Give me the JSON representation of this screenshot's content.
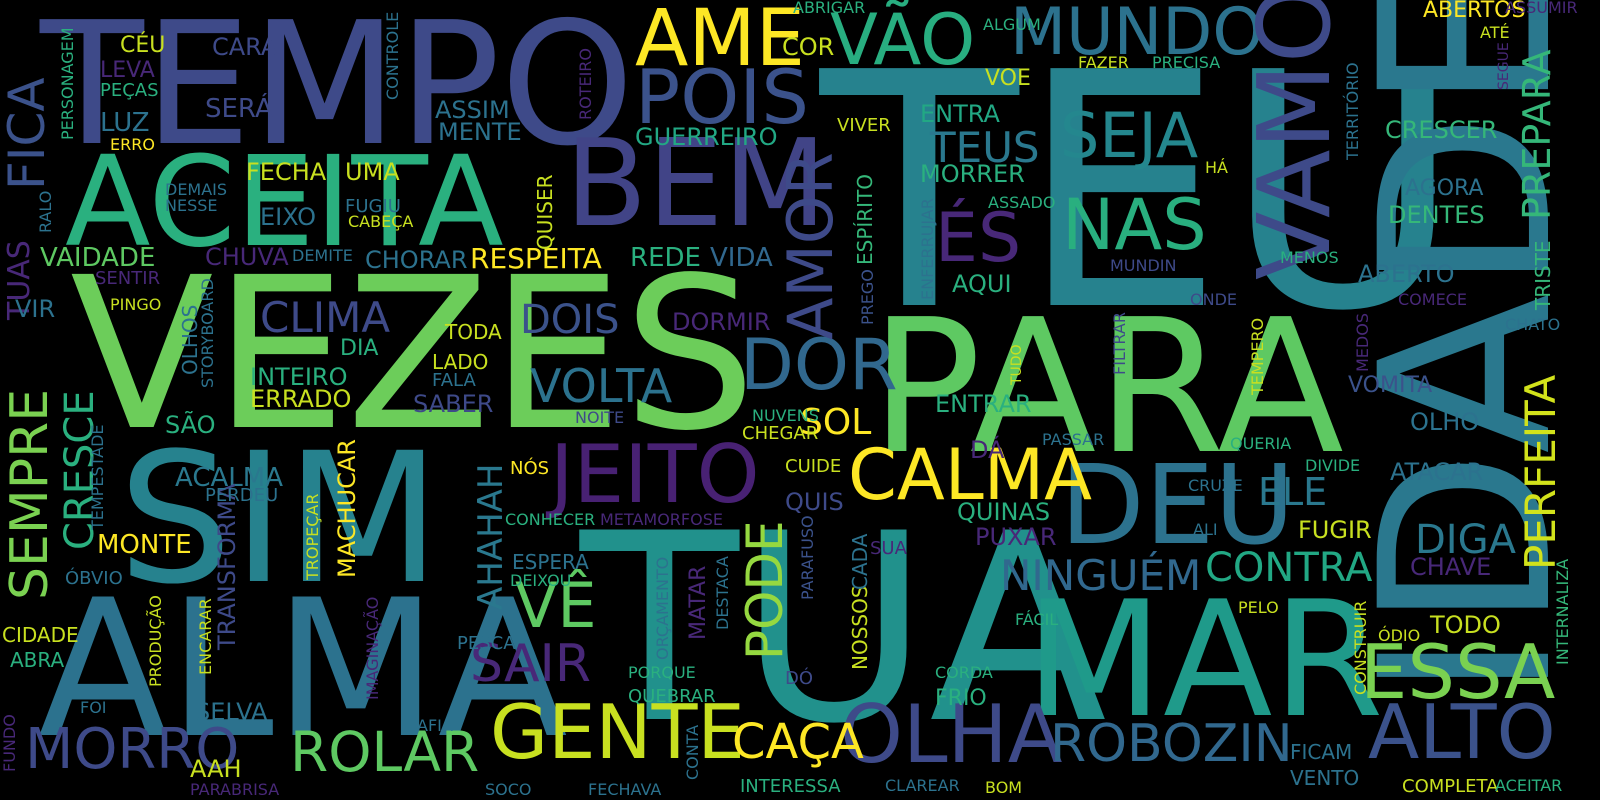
{
  "words": [
    {
      "text": "TEU",
      "color": "#26828e"
    },
    {
      "text": "IDADE",
      "color": "#2a788e"
    },
    {
      "text": "TEMPO",
      "color": "#3e4a89"
    },
    {
      "text": "VEZES",
      "color": "#6ccd5a"
    },
    {
      "text": "PARA",
      "color": "#5ec962"
    },
    {
      "text": "SIM",
      "color": "#26828e"
    },
    {
      "text": "TUA",
      "color": "#21918c"
    },
    {
      "text": "ALMA",
      "color": "#2c728e"
    },
    {
      "text": "MAR",
      "color": "#1f9a8a"
    },
    {
      "text": "ACEITA",
      "color": "#2ab07f"
    },
    {
      "text": "BEM",
      "color": "#414487"
    },
    {
      "text": "AME",
      "color": "#fde725"
    },
    {
      "text": "POIS",
      "color": "#3b528b"
    },
    {
      "text": "VÃO",
      "color": "#28ae80"
    },
    {
      "text": "MUNDO",
      "color": "#2c728e"
    },
    {
      "text": "VAMOS",
      "color": "#3e4a89"
    },
    {
      "text": "SEJA",
      "color": "#24878e"
    },
    {
      "text": "NAS",
      "color": "#29af7f"
    },
    {
      "text": "ÉS",
      "color": "#482878"
    },
    {
      "text": "DEU",
      "color": "#2c728e"
    },
    {
      "text": "CALMA",
      "color": "#fde725"
    },
    {
      "text": "JEITO",
      "color": "#482173"
    },
    {
      "text": "DOR",
      "color": "#31688e"
    },
    {
      "text": "AMOR",
      "color": "#3e4a89"
    },
    {
      "text": "OLHA",
      "color": "#3e4a89"
    },
    {
      "text": "GENTE",
      "color": "#c8e020"
    },
    {
      "text": "ROBOZIN",
      "color": "#31688e"
    },
    {
      "text": "ESSA",
      "color": "#7ad151"
    },
    {
      "text": "ALTO",
      "color": "#3b528b"
    },
    {
      "text": "ROLAR",
      "color": "#5ec962"
    },
    {
      "text": "MORRO",
      "color": "#3e4a89"
    },
    {
      "text": "SAIR",
      "color": "#482878"
    },
    {
      "text": "VÊ",
      "color": "#5ec962"
    },
    {
      "text": "PODE",
      "color": "#95d840"
    },
    {
      "text": "CAÇA",
      "color": "#fde725"
    },
    {
      "text": "VOLTA",
      "color": "#2c728e"
    },
    {
      "text": "DOIS",
      "color": "#3b528b"
    },
    {
      "text": "CLIMA",
      "color": "#3e4a89"
    },
    {
      "text": "NINGUÉM",
      "color": "#31688e"
    },
    {
      "text": "CONTRA",
      "color": "#22a884"
    },
    {
      "text": "DIGA",
      "color": "#2a788e"
    },
    {
      "text": "PERFEITA",
      "color": "#d2e21b"
    },
    {
      "text": "PREPARA",
      "color": "#35b779"
    },
    {
      "text": "TEUS",
      "color": "#2a788e"
    },
    {
      "text": "ELE",
      "color": "#2a788e"
    },
    {
      "text": "SEMPRE",
      "color": "#7ad151"
    },
    {
      "text": "FICA",
      "color": "#3b528b"
    },
    {
      "text": "TUAS",
      "color": "#482878"
    },
    {
      "text": "CRESCE",
      "color": "#2ab07f"
    },
    {
      "text": "AHAHAH",
      "color": "#2a788e"
    },
    {
      "text": "RESPEITA",
      "color": "#fde725"
    },
    {
      "text": "VAIDADE",
      "color": "#5ec962"
    },
    {
      "text": "ACALMA",
      "color": "#2a788e"
    },
    {
      "text": "MACHUCAR",
      "color": "#fde725"
    },
    {
      "text": "TRANSFORMA",
      "color": "#3e4a89"
    },
    {
      "text": "SOL",
      "color": "#fde725"
    },
    {
      "text": "CRESCER",
      "color": "#35b779"
    },
    {
      "text": "AGORA",
      "color": "#2c728e"
    },
    {
      "text": "DENTES",
      "color": "#35b779"
    },
    {
      "text": "ABERTO",
      "color": "#2c728e"
    },
    {
      "text": "TRISTE",
      "color": "#35b779"
    },
    {
      "text": "VOMITA",
      "color": "#3b528b"
    },
    {
      "text": "OLHO",
      "color": "#2c728e"
    },
    {
      "text": "ATACAR",
      "color": "#2c728e"
    },
    {
      "text": "CHAVE",
      "color": "#482878"
    },
    {
      "text": "TODO",
      "color": "#c8e020"
    },
    {
      "text": "FUGIR",
      "color": "#c8e020"
    },
    {
      "text": "VIDA",
      "color": "#31688e"
    },
    {
      "text": "REDE",
      "color": "#2ab07f"
    },
    {
      "text": "MORRER",
      "color": "#2ab07f"
    },
    {
      "text": "ENTRA",
      "color": "#22a884"
    },
    {
      "text": "VOE",
      "color": "#c8e020"
    },
    {
      "text": "GUERREIRO",
      "color": "#22a884"
    },
    {
      "text": "ASSIM",
      "color": "#2c728e"
    },
    {
      "text": "MENTE",
      "color": "#2c728e"
    },
    {
      "text": "CHORAR",
      "color": "#2c728e"
    },
    {
      "text": "CHUVA",
      "color": "#482878"
    },
    {
      "text": "ERRADO",
      "color": "#c8e020"
    },
    {
      "text": "INTEIRO",
      "color": "#2ab07f"
    },
    {
      "text": "SABER",
      "color": "#3e4a89"
    },
    {
      "text": "DORMIR",
      "color": "#482878"
    },
    {
      "text": "AQUI",
      "color": "#2ab07f"
    },
    {
      "text": "ENTRAR",
      "color": "#2ab07f"
    },
    {
      "text": "QUINAS",
      "color": "#2ab07f"
    },
    {
      "text": "PUXAR",
      "color": "#482878"
    },
    {
      "text": "ESPÍRITO",
      "color": "#35b779"
    },
    {
      "text": "ENFERRUJAR",
      "color": "#2c728e"
    },
    {
      "text": "PREGO",
      "color": "#3b528b"
    },
    {
      "text": "NOSSOS",
      "color": "#c8e020"
    },
    {
      "text": "CADA",
      "color": "#2c728e"
    },
    {
      "text": "PARAFUSO",
      "color": "#3b528b"
    },
    {
      "text": "QUISER",
      "color": "#c8e020"
    },
    {
      "text": "COR",
      "color": "#c8e020"
    },
    {
      "text": "CARA",
      "color": "#3e4a89"
    },
    {
      "text": "CÉU",
      "color": "#c8e020"
    },
    {
      "text": "LEVA",
      "color": "#482878"
    },
    {
      "text": "PEÇAS",
      "color": "#2ab07f"
    },
    {
      "text": "SERÁ",
      "color": "#3e4a89"
    },
    {
      "text": "LUZ",
      "color": "#2c728e"
    },
    {
      "text": "ERRO",
      "color": "#fde725"
    },
    {
      "text": "PERSONAGEM",
      "color": "#2ab07f"
    },
    {
      "text": "CONTROLE",
      "color": "#2c728e"
    },
    {
      "text": "ROTEIRO",
      "color": "#482878"
    },
    {
      "text": "FECHA",
      "color": "#c8e020"
    },
    {
      "text": "UMA",
      "color": "#c8e020"
    },
    {
      "text": "EIXO",
      "color": "#2c728e"
    },
    {
      "text": "FUGIU",
      "color": "#2c728e"
    },
    {
      "text": "CABEÇA",
      "color": "#c8e020"
    },
    {
      "text": "DEMAIS",
      "color": "#2c728e"
    },
    {
      "text": "NESSE",
      "color": "#2c728e"
    },
    {
      "text": "RALO",
      "color": "#2c728e"
    },
    {
      "text": "DEMITE",
      "color": "#2c728e"
    },
    {
      "text": "SENTIR",
      "color": "#482878"
    },
    {
      "text": "VIR",
      "color": "#2c728e"
    },
    {
      "text": "PINGO",
      "color": "#c8e020"
    },
    {
      "text": "OLHOS",
      "color": "#2c728e"
    },
    {
      "text": "STORYBOARD",
      "color": "#2c728e"
    },
    {
      "text": "DIA",
      "color": "#2ab07f"
    },
    {
      "text": "TODA",
      "color": "#c8e020"
    },
    {
      "text": "LADO",
      "color": "#c8e020"
    },
    {
      "text": "FALA",
      "color": "#2c728e"
    },
    {
      "text": "SÃO",
      "color": "#2ab07f"
    },
    {
      "text": "TEMPESTADE",
      "color": "#2c728e"
    },
    {
      "text": "PERDEU",
      "color": "#2c728e"
    },
    {
      "text": "MONTE",
      "color": "#fde725"
    },
    {
      "text": "ÓBVIO",
      "color": "#2c728e"
    },
    {
      "text": "TROPEÇAR",
      "color": "#c8e020"
    },
    {
      "text": "CIDADE",
      "color": "#c8e020"
    },
    {
      "text": "ABRA",
      "color": "#2ab07f"
    },
    {
      "text": "PRODUÇÃO",
      "color": "#c8e020"
    },
    {
      "text": "FOI",
      "color": "#2c728e"
    },
    {
      "text": "FUNDO",
      "color": "#482878"
    },
    {
      "text": "AAH",
      "color": "#c8e020"
    },
    {
      "text": "PARABRISA",
      "color": "#482878"
    },
    {
      "text": "SELVA",
      "color": "#2c728e"
    },
    {
      "text": "ENCARAR",
      "color": "#c8e020"
    },
    {
      "text": "IMAGINAÇÃO",
      "color": "#482878"
    },
    {
      "text": "AFIA",
      "color": "#2c728e"
    },
    {
      "text": "SOCO",
      "color": "#2c728e"
    },
    {
      "text": "PESCA",
      "color": "#2c728e"
    },
    {
      "text": "ESPERA",
      "color": "#2c728e"
    },
    {
      "text": "DEIXOU",
      "color": "#2ab07f"
    },
    {
      "text": "NÓS",
      "color": "#fde725"
    },
    {
      "text": "CONHECER",
      "color": "#2ab07f"
    },
    {
      "text": "METAMORFOSE",
      "color": "#482878"
    },
    {
      "text": "ORÇAMENTO",
      "color": "#2c728e"
    },
    {
      "text": "MATAR",
      "color": "#482878"
    },
    {
      "text": "DESTACA",
      "color": "#2c728e"
    },
    {
      "text": "PORQUE",
      "color": "#2ab07f"
    },
    {
      "text": "QUEBRAR",
      "color": "#2ab07f"
    },
    {
      "text": "FECHAVA",
      "color": "#2c728e"
    },
    {
      "text": "CONTA",
      "color": "#2c728e"
    },
    {
      "text": "DÓ",
      "color": "#3e4a89"
    },
    {
      "text": "INTERESSA",
      "color": "#2ab07f"
    },
    {
      "text": "CLAREAR",
      "color": "#2c728e"
    },
    {
      "text": "BOM",
      "color": "#c8e020"
    },
    {
      "text": "CORDA",
      "color": "#2ab07f"
    },
    {
      "text": "FRIO",
      "color": "#2ab07f"
    },
    {
      "text": "SUA",
      "color": "#482878"
    },
    {
      "text": "CUIDE",
      "color": "#c8e020"
    },
    {
      "text": "QUIS",
      "color": "#3e4a89"
    },
    {
      "text": "CHEGAR",
      "color": "#c8e020"
    },
    {
      "text": "NUVENS",
      "color": "#2ab07f"
    },
    {
      "text": "NOITE",
      "color": "#3e4a89"
    },
    {
      "text": "DÁ",
      "color": "#482878"
    },
    {
      "text": "PASSAR",
      "color": "#2c728e"
    },
    {
      "text": "FILTRAR",
      "color": "#3e4a89"
    },
    {
      "text": "TUDO",
      "color": "#c8e020"
    },
    {
      "text": "CRUZE",
      "color": "#2c728e"
    },
    {
      "text": "ALI",
      "color": "#2c728e"
    },
    {
      "text": "FÁCIL",
      "color": "#2ab07f"
    },
    {
      "text": "PELO",
      "color": "#c8e020"
    },
    {
      "text": "ÓDIO",
      "color": "#c8e020"
    },
    {
      "text": "CONSTRUIR",
      "color": "#c8e020"
    },
    {
      "text": "FICAM",
      "color": "#2c728e"
    },
    {
      "text": "VENTO",
      "color": "#2c728e"
    },
    {
      "text": "COMPLETA",
      "color": "#c8e020"
    },
    {
      "text": "ACEITAR",
      "color": "#2ab07f"
    },
    {
      "text": "INTERNALIZA",
      "color": "#35b779"
    },
    {
      "text": "DIVIDE",
      "color": "#2ab07f"
    },
    {
      "text": "QUERIA",
      "color": "#2ab07f"
    },
    {
      "text": "TEMPERO",
      "color": "#c8e020"
    },
    {
      "text": "MEDOS",
      "color": "#482878"
    },
    {
      "text": "CHATO",
      "color": "#2c728e"
    },
    {
      "text": "COMECE",
      "color": "#482878"
    },
    {
      "text": "ONDE",
      "color": "#3e4a89"
    },
    {
      "text": "MUNDIN",
      "color": "#3e4a89"
    },
    {
      "text": "MENOS",
      "color": "#2ab07f"
    },
    {
      "text": "HÁ",
      "color": "#c8e020"
    },
    {
      "text": "TERRITÓRIO",
      "color": "#2c728e"
    },
    {
      "text": "FAZER",
      "color": "#c8e020"
    },
    {
      "text": "PRECISA",
      "color": "#2ab07f"
    },
    {
      "text": "ASSADO",
      "color": "#2ab07f"
    },
    {
      "text": "ABRIGAR",
      "color": "#2ab07f"
    },
    {
      "text": "ALGUM",
      "color": "#2ab07f"
    },
    {
      "text": "VIVER",
      "color": "#c8e020"
    },
    {
      "text": "ABERTOS",
      "color": "#fde725"
    },
    {
      "text": "ASSUMIR",
      "color": "#482878"
    },
    {
      "text": "ATÉ",
      "color": "#c8e020"
    },
    {
      "text": "SEGUE",
      "color": "#482878"
    }
  ]
}
